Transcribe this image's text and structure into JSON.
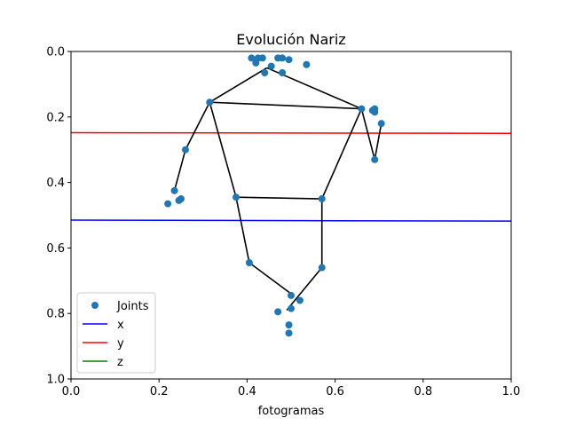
{
  "chart_data": {
    "type": "scatter",
    "title": "Evolución Nariz",
    "xlabel": "fotogramas",
    "ylabel": "",
    "xlim": [
      0,
      1
    ],
    "ylim": [
      1,
      0
    ],
    "y_inverted": true,
    "grid": false,
    "legend_position": "lower-left",
    "xticks": [
      "0.0",
      "0.2",
      "0.4",
      "0.6",
      "0.8",
      "1.0"
    ],
    "yticks": [
      "0.0",
      "0.2",
      "0.4",
      "0.6",
      "0.8",
      "1.0"
    ],
    "joints": {
      "name": "Joints",
      "color": "#1f77b4",
      "points": [
        [
          0.41,
          0.02
        ],
        [
          0.42,
          0.035
        ],
        [
          0.425,
          0.02
        ],
        [
          0.435,
          0.02
        ],
        [
          0.455,
          0.045
        ],
        [
          0.44,
          0.065
        ],
        [
          0.47,
          0.02
        ],
        [
          0.48,
          0.02
        ],
        [
          0.495,
          0.025
        ],
        [
          0.48,
          0.065
        ],
        [
          0.535,
          0.04
        ],
        [
          0.315,
          0.155
        ],
        [
          0.66,
          0.175
        ],
        [
          0.685,
          0.18
        ],
        [
          0.69,
          0.185
        ],
        [
          0.69,
          0.175
        ],
        [
          0.705,
          0.22
        ],
        [
          0.69,
          0.33
        ],
        [
          0.26,
          0.3
        ],
        [
          0.235,
          0.425
        ],
        [
          0.245,
          0.455
        ],
        [
          0.25,
          0.45
        ],
        [
          0.22,
          0.465
        ],
        [
          0.375,
          0.445
        ],
        [
          0.57,
          0.45
        ],
        [
          0.405,
          0.645
        ],
        [
          0.57,
          0.66
        ],
        [
          0.5,
          0.745
        ],
        [
          0.52,
          0.76
        ],
        [
          0.5,
          0.785
        ],
        [
          0.47,
          0.795
        ],
        [
          0.495,
          0.835
        ],
        [
          0.495,
          0.86
        ]
      ]
    },
    "skeleton": {
      "color": "#000000",
      "segments": [
        [
          [
            0.315,
            0.155
          ],
          [
            0.445,
            0.05
          ]
        ],
        [
          [
            0.445,
            0.05
          ],
          [
            0.66,
            0.175
          ]
        ],
        [
          [
            0.315,
            0.155
          ],
          [
            0.66,
            0.175
          ]
        ],
        [
          [
            0.66,
            0.175
          ],
          [
            0.69,
            0.33
          ]
        ],
        [
          [
            0.69,
            0.33
          ],
          [
            0.705,
            0.22
          ]
        ],
        [
          [
            0.315,
            0.155
          ],
          [
            0.26,
            0.3
          ]
        ],
        [
          [
            0.26,
            0.3
          ],
          [
            0.235,
            0.425
          ]
        ],
        [
          [
            0.315,
            0.155
          ],
          [
            0.375,
            0.445
          ]
        ],
        [
          [
            0.66,
            0.175
          ],
          [
            0.57,
            0.45
          ]
        ],
        [
          [
            0.375,
            0.445
          ],
          [
            0.57,
            0.45
          ]
        ],
        [
          [
            0.375,
            0.445
          ],
          [
            0.405,
            0.645
          ]
        ],
        [
          [
            0.57,
            0.45
          ],
          [
            0.57,
            0.66
          ]
        ],
        [
          [
            0.405,
            0.645
          ],
          [
            0.505,
            0.745
          ]
        ],
        [
          [
            0.57,
            0.66
          ],
          [
            0.49,
            0.79
          ]
        ]
      ]
    },
    "lines": [
      {
        "name": "x",
        "color": "#0000ff",
        "y_start": 0.515,
        "y_end": 0.518
      },
      {
        "name": "y",
        "color": "#ff0000",
        "y_start": 0.248,
        "y_end": 0.25
      },
      {
        "name": "z",
        "color": "#008000",
        "y_start": null,
        "y_end": null
      }
    ]
  }
}
